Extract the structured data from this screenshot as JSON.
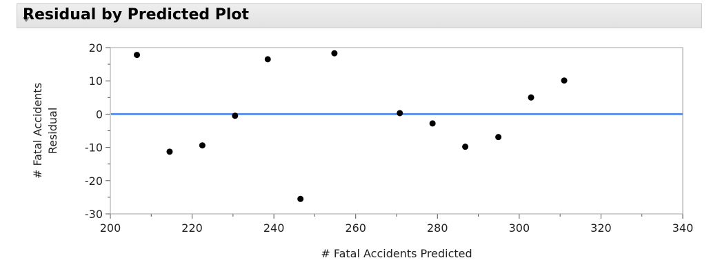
{
  "report": {
    "title": "Residual by Predicted Plot"
  },
  "chart_data": {
    "type": "scatter",
    "title": "Residual by Predicted Plot",
    "xlabel": "# Fatal Accidents Predicted",
    "ylabel_lines": [
      "# Fatal Accidents",
      "Residual"
    ],
    "xlim": [
      200,
      340
    ],
    "ylim": [
      -30,
      20
    ],
    "xticks": [
      200,
      220,
      240,
      260,
      280,
      300,
      320,
      340
    ],
    "yticks": [
      -30,
      -20,
      -10,
      0,
      10,
      20
    ],
    "grid": false,
    "reference_line": {
      "y": 0,
      "color": "#5b8fe8"
    },
    "point_color": "#000000",
    "points": [
      {
        "x": 206.5,
        "y": 17.8
      },
      {
        "x": 214.5,
        "y": -11.3
      },
      {
        "x": 222.5,
        "y": -9.4
      },
      {
        "x": 230.5,
        "y": -0.5
      },
      {
        "x": 238.5,
        "y": 16.5
      },
      {
        "x": 246.5,
        "y": -25.5
      },
      {
        "x": 254.8,
        "y": 18.3
      },
      {
        "x": 270.8,
        "y": 0.3
      },
      {
        "x": 278.8,
        "y": -2.8
      },
      {
        "x": 286.8,
        "y": -9.8
      },
      {
        "x": 294.9,
        "y": -6.9
      },
      {
        "x": 302.9,
        "y": 5.0
      },
      {
        "x": 311.0,
        "y": 10.1
      }
    ]
  }
}
